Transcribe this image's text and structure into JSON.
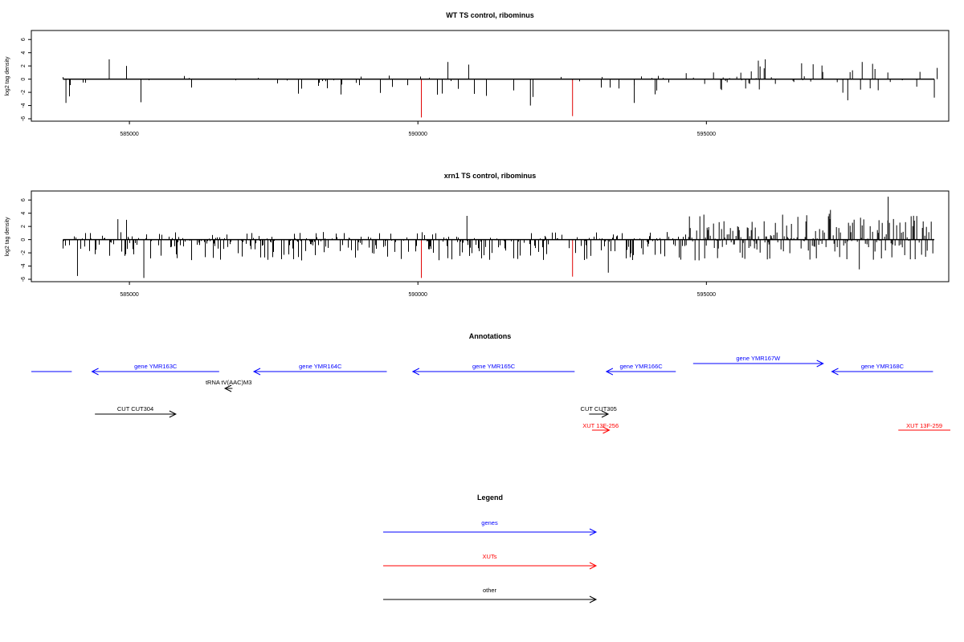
{
  "chart_data": [
    {
      "type": "bar",
      "title": "WT TS control, ribominus",
      "ylabel": "log2 tag density",
      "xlim": [
        583300,
        599200
      ],
      "ylim": [
        -6,
        7
      ],
      "x_ticks": [
        585000,
        590000,
        595000
      ],
      "y_ticks": [
        6,
        4,
        2,
        0,
        -2,
        -4,
        -6
      ],
      "base_color": "#000000",
      "highlight_color": "#e00000",
      "highlights": [
        {
          "x": 590060,
          "value": -5.8
        },
        {
          "x": 592680,
          "value": -5.6
        }
      ],
      "segments": [
        {
          "x0": 583850,
          "x1": 594650,
          "density": 0.075,
          "pos_max": 0.4,
          "neg_max": 2.6,
          "pos_prob": 0.3
        },
        {
          "x0": 594650,
          "x1": 598950,
          "density": 0.11,
          "pos_max": 2.2,
          "neg_max": 2.0,
          "pos_prob": 0.55
        }
      ],
      "peaks": [
        {
          "x": 584650,
          "value": 3.0
        },
        {
          "x": 584950,
          "value": 2.0
        },
        {
          "x": 590520,
          "value": 2.6
        },
        {
          "x": 590880,
          "value": 2.2
        },
        {
          "x": 583900,
          "value": -3.6
        },
        {
          "x": 585200,
          "value": -3.5
        },
        {
          "x": 591950,
          "value": -4.0
        },
        {
          "x": 593750,
          "value": -3.6
        },
        {
          "x": 595900,
          "value": 2.8
        },
        {
          "x": 596020,
          "value": 3.0
        },
        {
          "x": 596650,
          "value": 2.4
        },
        {
          "x": 597700,
          "value": 2.6
        },
        {
          "x": 597450,
          "value": -3.2
        },
        {
          "x": 599000,
          "value": 1.7
        },
        {
          "x": 598950,
          "value": -2.8
        }
      ]
    },
    {
      "type": "bar",
      "title": "xrn1 TS control, ribominus",
      "ylabel": "log2 tag density",
      "xlim": [
        583300,
        599200
      ],
      "ylim": [
        -6,
        7
      ],
      "x_ticks": [
        585000,
        590000,
        595000
      ],
      "y_ticks": [
        6,
        4,
        2,
        0,
        -2,
        -4,
        -6
      ],
      "base_color": "#000000",
      "highlight_color": "#e00000",
      "highlights": [
        {
          "x": 590060,
          "value": -5.8
        },
        {
          "x": 592680,
          "value": -5.6
        }
      ],
      "segments": [
        {
          "x0": 583850,
          "x1": 594650,
          "density": 0.4,
          "pos_max": 1.0,
          "neg_max": 3.0,
          "pos_prob": 0.35
        },
        {
          "x0": 594650,
          "x1": 598950,
          "density": 0.6,
          "pos_max": 3.8,
          "neg_max": 3.0,
          "pos_prob": 0.6
        }
      ],
      "peaks": [
        {
          "x": 584800,
          "value": 3.1
        },
        {
          "x": 584950,
          "value": 3.0
        },
        {
          "x": 585250,
          "value": -5.8
        },
        {
          "x": 584100,
          "value": -5.5
        },
        {
          "x": 590850,
          "value": 3.6
        },
        {
          "x": 593300,
          "value": -5.0
        },
        {
          "x": 598150,
          "value": 6.5
        },
        {
          "x": 597150,
          "value": 4.5
        },
        {
          "x": 597650,
          "value": -4.5
        }
      ]
    }
  ],
  "annotations": {
    "title": "Annotations",
    "xlim": [
      583300,
      599200
    ],
    "features": [
      {
        "label": "",
        "x0": 583300,
        "x1": 584000,
        "strand": "none",
        "row": "gene",
        "color": "#0000ff"
      },
      {
        "label": "gene YMR163C",
        "x0": 584350,
        "x1": 586550,
        "strand": "-",
        "row": "gene",
        "color": "#0000ff"
      },
      {
        "label": "gene YMR164C",
        "x0": 587150,
        "x1": 589450,
        "strand": "-",
        "row": "gene",
        "color": "#0000ff"
      },
      {
        "label": "gene YMR165C",
        "x0": 589900,
        "x1": 592700,
        "strand": "-",
        "row": "gene",
        "color": "#0000ff"
      },
      {
        "label": "gene YMR166C",
        "x0": 593250,
        "x1": 594450,
        "strand": "-",
        "row": "gene",
        "color": "#0000ff"
      },
      {
        "label": "gene YMR167W",
        "x0": 594750,
        "x1": 597000,
        "strand": "+",
        "row": "gene-upper",
        "color": "#0000ff"
      },
      {
        "label": "gene YMR168C",
        "x0": 597150,
        "x1": 598900,
        "strand": "-",
        "row": "gene",
        "color": "#0000ff"
      },
      {
        "label": "tRNA tV(AAC)M3",
        "x0": 586650,
        "x1": 586780,
        "strand": "-",
        "row": "trna",
        "color": "#000000"
      },
      {
        "label": "CUT CUT304",
        "x0": 584400,
        "x1": 585800,
        "strand": "+",
        "row": "cut",
        "color": "#000000"
      },
      {
        "label": "CUT CUT305",
        "x0": 592950,
        "x1": 593280,
        "strand": "+",
        "row": "cut",
        "color": "#000000"
      },
      {
        "label": "XUT 13F-256",
        "x0": 593000,
        "x1": 593300,
        "strand": "+",
        "row": "xut",
        "color": "#ff0000"
      },
      {
        "label": "XUT 13F-259",
        "x0": 598300,
        "x1": 599200,
        "strand": "none",
        "row": "xut",
        "color": "#ff0000"
      }
    ]
  },
  "legend": {
    "title": "Legend",
    "items": [
      {
        "label": "genes",
        "color": "#0000ff"
      },
      {
        "label": "XUTs",
        "color": "#ff0000"
      },
      {
        "label": "other",
        "color": "#000000"
      }
    ]
  }
}
